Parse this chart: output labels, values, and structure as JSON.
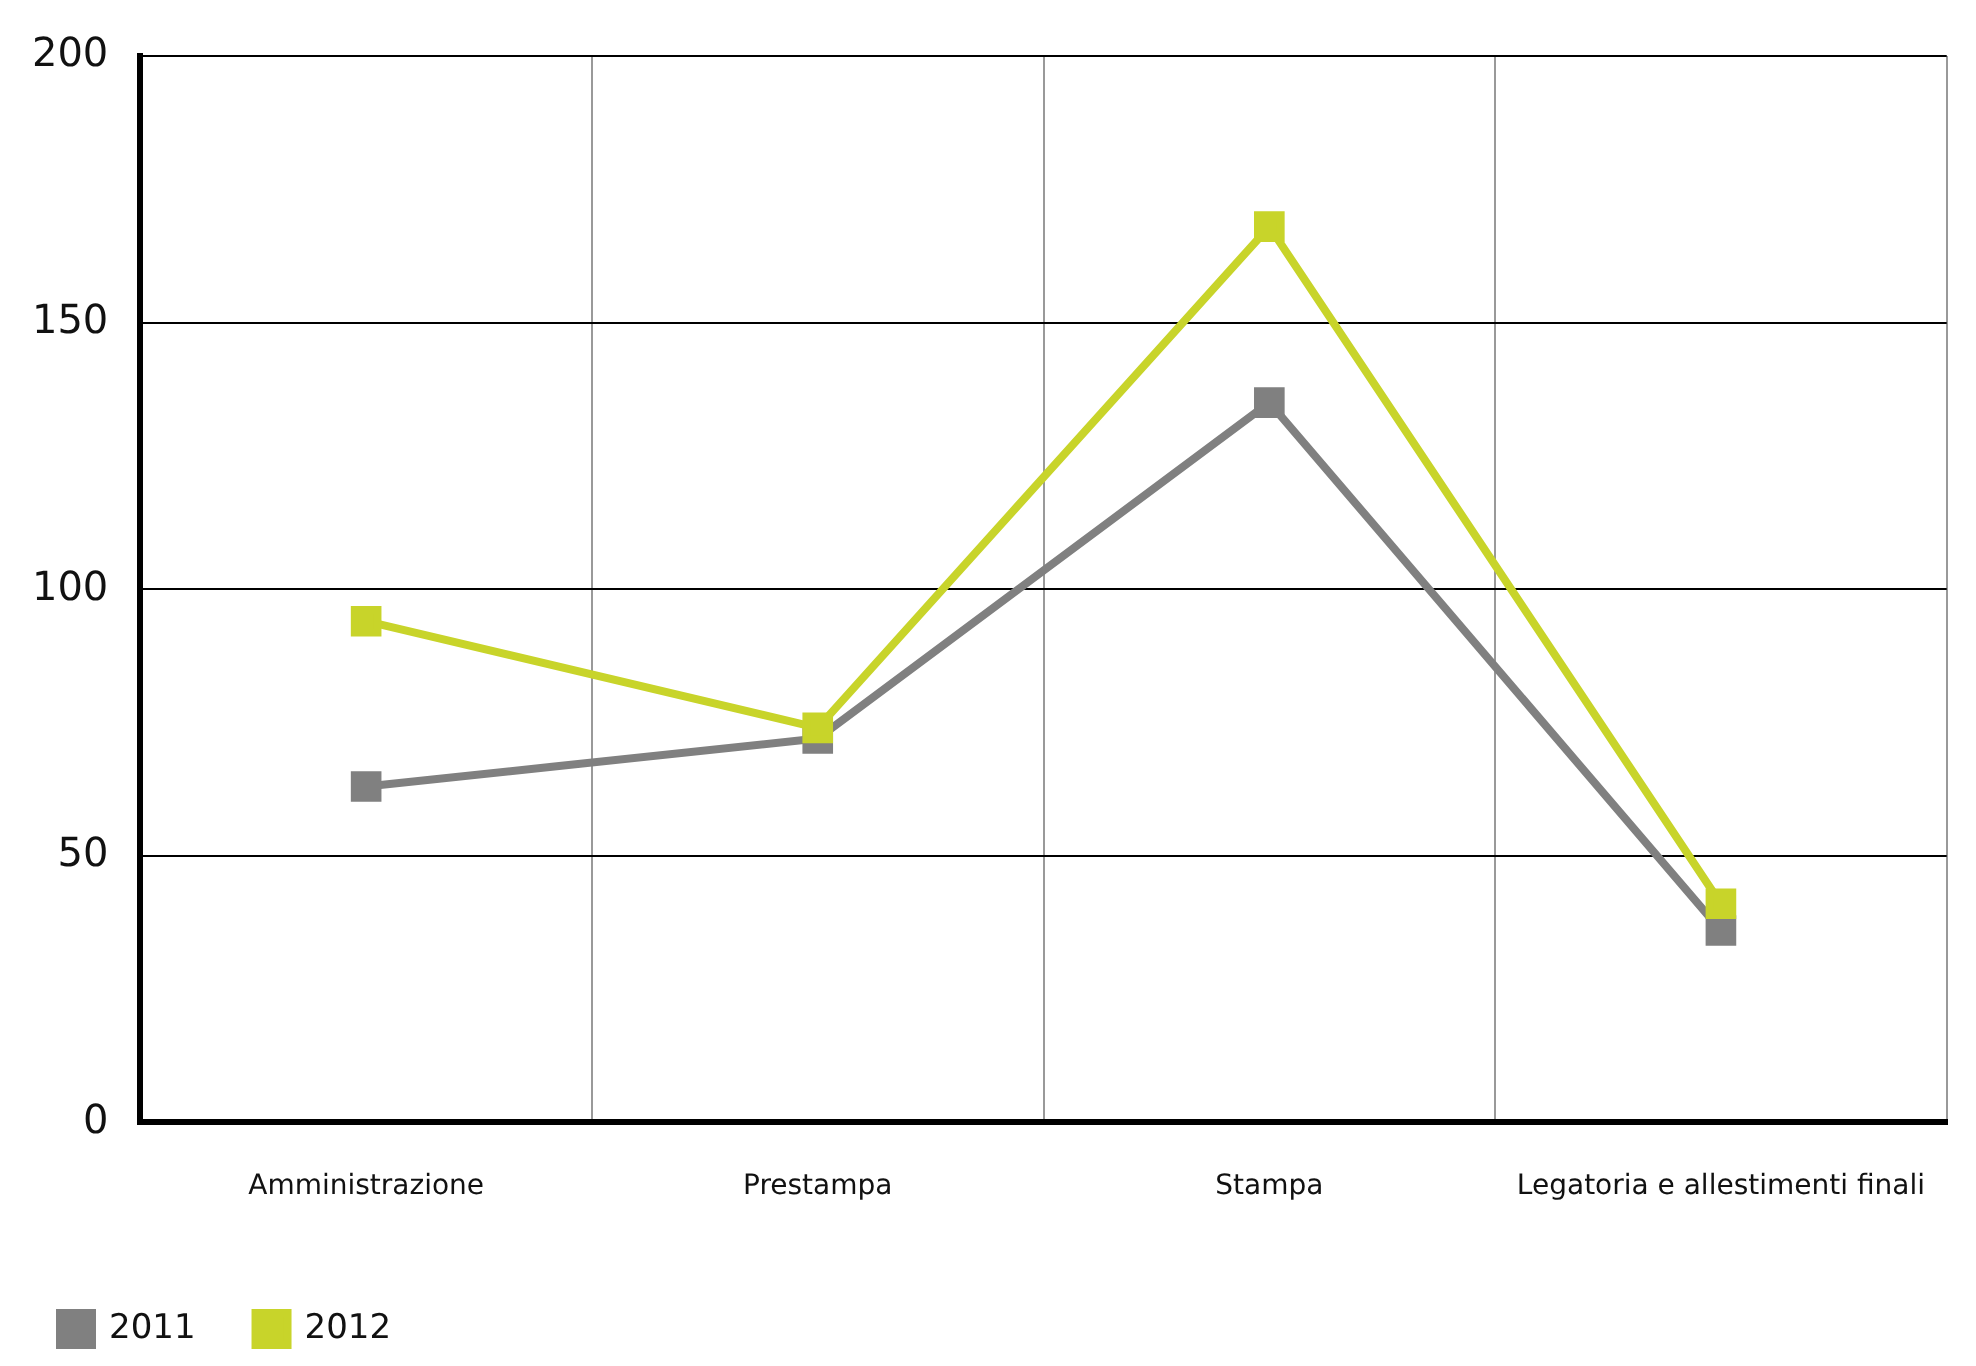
{
  "chart_data": {
    "type": "line",
    "categories": [
      "Amministrazione",
      "Prestampa",
      "Stampa",
      "Legatoria e allestimenti finali"
    ],
    "series": [
      {
        "name": "2011",
        "color": "#808080",
        "values": [
          63,
          72,
          135,
          36
        ]
      },
      {
        "name": "2012",
        "color": "#c8d42a",
        "values": [
          94,
          74,
          168,
          41
        ]
      }
    ],
    "ylim": [
      0,
      200
    ],
    "yticks": [
      0,
      50,
      100,
      150,
      200
    ],
    "grid": true,
    "legend": "bottom left",
    "marker": "square",
    "line_style": "solid"
  }
}
